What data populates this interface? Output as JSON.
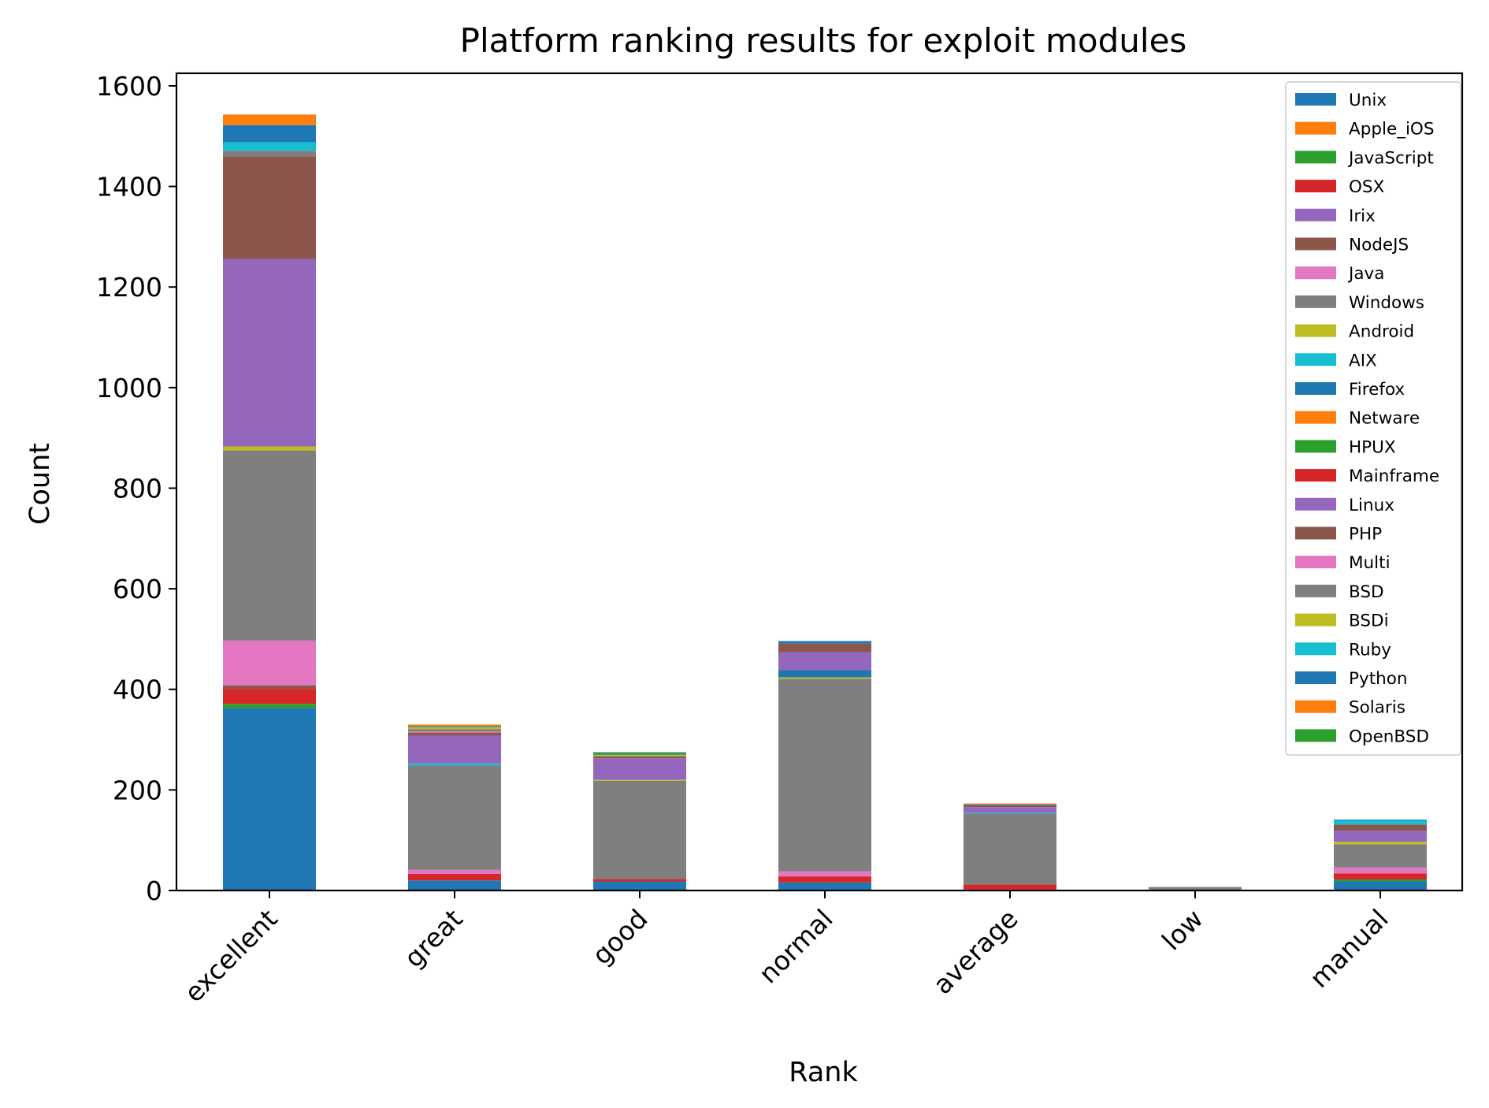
{
  "chart_data": {
    "type": "bar",
    "stacked": true,
    "title": "Platform ranking results for exploit modules",
    "xlabel": "Rank",
    "ylabel": "Count",
    "ylim": [
      0,
      1625
    ],
    "yticks": [
      0,
      200,
      400,
      600,
      800,
      1000,
      1200,
      1400,
      1600
    ],
    "grid": false,
    "legend_position": "top-right",
    "categories": [
      "excellent",
      "great",
      "good",
      "normal",
      "average",
      "low",
      "manual"
    ],
    "series": [
      {
        "name": "Unix",
        "color": "#1f77b4",
        "values": [
          363,
          20,
          18,
          16,
          2,
          0,
          18
        ]
      },
      {
        "name": "Apple_iOS",
        "color": "#ff7f0e",
        "values": [
          0,
          0,
          0,
          0,
          0,
          0,
          0
        ]
      },
      {
        "name": "JavaScript",
        "color": "#2ca02c",
        "values": [
          8,
          0,
          0,
          0,
          0,
          0,
          4
        ]
      },
      {
        "name": "OSX",
        "color": "#d62728",
        "values": [
          30,
          13,
          5,
          12,
          10,
          0,
          12
        ]
      },
      {
        "name": "Irix",
        "color": "#9467bd",
        "values": [
          0,
          0,
          0,
          0,
          0,
          0,
          0
        ]
      },
      {
        "name": "NodeJS",
        "color": "#8c564b",
        "values": [
          7,
          0,
          0,
          0,
          0,
          0,
          0
        ]
      },
      {
        "name": "Java",
        "color": "#e377c2",
        "values": [
          89,
          8,
          0,
          10,
          0,
          0,
          12
        ]
      },
      {
        "name": "Windows",
        "color": "#7f7f7f",
        "values": [
          378,
          208,
          195,
          383,
          140,
          7,
          46
        ]
      },
      {
        "name": "Android",
        "color": "#bcbd22",
        "values": [
          8,
          0,
          2,
          3,
          0,
          0,
          5
        ]
      },
      {
        "name": "AIX",
        "color": "#17becf",
        "values": [
          0,
          4,
          0,
          0,
          2,
          0,
          0
        ]
      },
      {
        "name": "Firefox",
        "color": "#1f77b4",
        "values": [
          0,
          0,
          0,
          14,
          0,
          0,
          0
        ]
      },
      {
        "name": "Netware",
        "color": "#ff7f0e",
        "values": [
          0,
          0,
          0,
          0,
          0,
          0,
          0
        ]
      },
      {
        "name": "HPUX",
        "color": "#2ca02c",
        "values": [
          0,
          0,
          0,
          0,
          0,
          0,
          0
        ]
      },
      {
        "name": "Mainframe",
        "color": "#d62728",
        "values": [
          0,
          0,
          0,
          0,
          0,
          0,
          0
        ]
      },
      {
        "name": "Linux",
        "color": "#9467bd",
        "values": [
          373,
          55,
          43,
          36,
          12,
          0,
          22
        ]
      },
      {
        "name": "PHP",
        "color": "#8c564b",
        "values": [
          204,
          6,
          4,
          17,
          3,
          0,
          12
        ]
      },
      {
        "name": "Multi",
        "color": "#e377c2",
        "values": [
          0,
          2,
          0,
          0,
          0,
          0,
          0
        ]
      },
      {
        "name": "BSD",
        "color": "#7f7f7f",
        "values": [
          11,
          5,
          0,
          0,
          0,
          0,
          0
        ]
      },
      {
        "name": "BSDi",
        "color": "#bcbd22",
        "values": [
          0,
          4,
          3,
          0,
          0,
          0,
          0
        ]
      },
      {
        "name": "Ruby",
        "color": "#17becf",
        "values": [
          17,
          0,
          0,
          0,
          0,
          0,
          8
        ]
      },
      {
        "name": "Python",
        "color": "#1f77b4",
        "values": [
          34,
          2,
          2,
          5,
          2,
          0,
          2
        ]
      },
      {
        "name": "Solaris",
        "color": "#ff7f0e",
        "values": [
          21,
          3,
          0,
          0,
          2,
          0,
          0
        ]
      },
      {
        "name": "OpenBSD",
        "color": "#2ca02c",
        "values": [
          0,
          0,
          3,
          0,
          0,
          0,
          0
        ]
      }
    ]
  }
}
